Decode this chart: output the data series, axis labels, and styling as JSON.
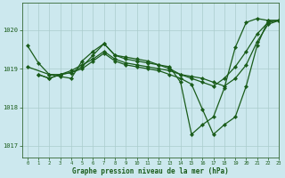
{
  "title": "Graphe pression niveau de la mer (hPa)",
  "bg_color": "#cce8ee",
  "grid_color": "#aacccc",
  "line_color": "#1a5c1a",
  "xlim": [
    -0.5,
    23
  ],
  "ylim": [
    1016.7,
    1020.7
  ],
  "yticks": [
    1017,
    1018,
    1019,
    1020
  ],
  "xticks": [
    0,
    1,
    2,
    3,
    4,
    5,
    6,
    7,
    8,
    9,
    10,
    11,
    12,
    13,
    14,
    15,
    16,
    17,
    18,
    19,
    20,
    21,
    22,
    23
  ],
  "line1_x": [
    0,
    1,
    2,
    3,
    4,
    5,
    6,
    7,
    8,
    9,
    10,
    11,
    12,
    13,
    14,
    15,
    16,
    17,
    18,
    19,
    20,
    21,
    22,
    23
  ],
  "line1_y": [
    1019.6,
    1019.15,
    1018.85,
    1018.8,
    1018.75,
    1019.2,
    1019.45,
    1019.65,
    1019.35,
    1019.3,
    1019.25,
    1019.2,
    1019.1,
    1019.05,
    1018.65,
    1017.3,
    1017.55,
    1017.75,
    1018.5,
    1019.55,
    1020.2,
    1020.3,
    1020.25,
    1020.25
  ],
  "line2_x": [
    0,
    2,
    3,
    4,
    5,
    6,
    7,
    8,
    9,
    10,
    11,
    12,
    13,
    14,
    15,
    16,
    17,
    18,
    19,
    20,
    21,
    22,
    23
  ],
  "line2_y": [
    1019.05,
    1018.85,
    1018.85,
    1018.9,
    1019.05,
    1019.35,
    1019.65,
    1019.35,
    1019.25,
    1019.2,
    1019.15,
    1019.1,
    1019.0,
    1018.85,
    1018.8,
    1018.75,
    1018.65,
    1018.55,
    1018.75,
    1019.1,
    1019.7,
    1020.15,
    1020.25
  ],
  "line3_x": [
    1,
    2,
    3,
    4,
    5,
    6,
    7,
    8,
    9,
    10,
    11,
    12,
    13,
    14,
    15,
    16,
    17,
    18,
    19,
    20,
    21,
    22,
    23
  ],
  "line3_y": [
    1018.85,
    1018.75,
    1018.85,
    1018.9,
    1019.0,
    1019.2,
    1019.4,
    1019.2,
    1019.1,
    1019.05,
    1019.0,
    1018.95,
    1018.85,
    1018.75,
    1018.6,
    1017.95,
    1017.3,
    1017.55,
    1017.75,
    1018.55,
    1019.6,
    1020.25,
    1020.25
  ],
  "line4_x": [
    1,
    2,
    3,
    4,
    5,
    6,
    7,
    8,
    9,
    10,
    11,
    12,
    13,
    14,
    15,
    16,
    17,
    18,
    19,
    20,
    21,
    22,
    23
  ],
  "line4_y": [
    1018.85,
    1018.75,
    1018.85,
    1018.95,
    1019.1,
    1019.25,
    1019.45,
    1019.25,
    1019.15,
    1019.1,
    1019.05,
    1019.0,
    1018.95,
    1018.85,
    1018.75,
    1018.65,
    1018.55,
    1018.75,
    1019.05,
    1019.45,
    1019.9,
    1020.2,
    1020.25
  ]
}
